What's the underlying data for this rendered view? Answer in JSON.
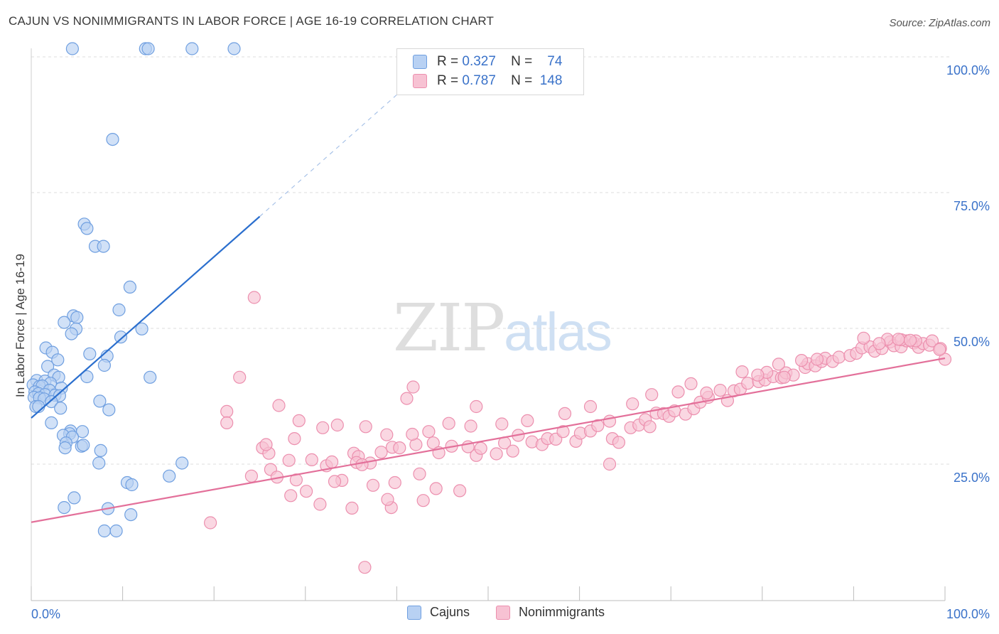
{
  "title": "CAJUN VS NONIMMIGRANTS IN LABOR FORCE | AGE 16-19 CORRELATION CHART",
  "source": "Source: ZipAtlas.com",
  "watermark": {
    "zip": "ZIP",
    "atlas": "atlas"
  },
  "legend": {
    "rows": [
      {
        "r_label": "R =",
        "r_value": "0.327",
        "n_label": "N =",
        "n_value": "74"
      },
      {
        "r_label": "R =",
        "r_value": "0.787",
        "n_label": "N =",
        "n_value": "148"
      }
    ]
  },
  "bottom_legend": {
    "cajuns": "Cajuns",
    "nonimmigrants": "Nonimmigrants"
  },
  "colors": {
    "cajun_fill": "#b8d1f3",
    "cajun_stroke": "#6f9fe0",
    "cajun_line": "#2b6fce",
    "nonimm_fill": "#f7c2d3",
    "nonimm_stroke": "#ec8fae",
    "nonimm_line": "#e3709a",
    "axis_text": "#3a72c9",
    "grid": "#dcdcdc"
  },
  "chart_data": {
    "type": "scatter",
    "title": "CAJUN VS NONIMMIGRANTS IN LABOR FORCE | AGE 16-19 CORRELATION CHART",
    "xlabel": "",
    "ylabel": "In Labor Force | Age 16-19",
    "xlim": [
      0,
      100
    ],
    "ylim": [
      0,
      105
    ],
    "x_tick_labels": [
      "0.0%",
      "100.0%"
    ],
    "y_ticks": [
      25,
      50,
      75,
      100
    ],
    "y_tick_labels": [
      "25.0%",
      "50.0%",
      "75.0%",
      "100.0%"
    ],
    "grid": true,
    "legend_position": "top-center",
    "series": [
      {
        "name": "Cajuns",
        "R": 0.327,
        "N": 74,
        "trend": {
          "x0": 0,
          "y0": 33.5,
          "x1": 25,
          "y1": 70.6,
          "dashed_to_x": 42,
          "dashed_to_y": 96
        },
        "points": [
          [
            4.5,
            101.5
          ],
          [
            12.5,
            101.5
          ],
          [
            12.8,
            101.5
          ],
          [
            17.6,
            101.5
          ],
          [
            22.2,
            101.5
          ],
          [
            8.9,
            84.8
          ],
          [
            5.8,
            69.2
          ],
          [
            6.1,
            68.4
          ],
          [
            7.0,
            65.1
          ],
          [
            7.9,
            65.1
          ],
          [
            10.8,
            57.6
          ],
          [
            9.6,
            53.4
          ],
          [
            4.6,
            52.3
          ],
          [
            5.0,
            52.0
          ],
          [
            3.6,
            51.1
          ],
          [
            4.9,
            49.9
          ],
          [
            4.4,
            49.0
          ],
          [
            12.1,
            49.9
          ],
          [
            9.8,
            48.4
          ],
          [
            1.6,
            46.4
          ],
          [
            2.3,
            45.6
          ],
          [
            6.4,
            45.3
          ],
          [
            8.3,
            44.9
          ],
          [
            8.0,
            43.2
          ],
          [
            2.9,
            44.2
          ],
          [
            1.8,
            43.0
          ],
          [
            6.1,
            41.1
          ],
          [
            13.0,
            41.0
          ],
          [
            2.5,
            41.4
          ],
          [
            3.0,
            41.0
          ],
          [
            0.6,
            40.4
          ],
          [
            1.5,
            40.3
          ],
          [
            2.1,
            39.9
          ],
          [
            0.2,
            39.6
          ],
          [
            0.9,
            39.3
          ],
          [
            1.2,
            39.4
          ],
          [
            2.0,
            38.6
          ],
          [
            3.3,
            39.0
          ],
          [
            0.4,
            38.3
          ],
          [
            0.8,
            38.0
          ],
          [
            1.5,
            37.8
          ],
          [
            2.6,
            37.7
          ],
          [
            3.1,
            37.6
          ],
          [
            0.3,
            37.3
          ],
          [
            0.9,
            37.2
          ],
          [
            1.4,
            37.0
          ],
          [
            2.2,
            36.5
          ],
          [
            0.5,
            35.6
          ],
          [
            0.8,
            35.6
          ],
          [
            3.2,
            35.3
          ],
          [
            7.5,
            36.6
          ],
          [
            8.5,
            35.0
          ],
          [
            2.2,
            32.6
          ],
          [
            4.3,
            31.1
          ],
          [
            5.6,
            31.0
          ],
          [
            4.2,
            30.6
          ],
          [
            3.5,
            30.3
          ],
          [
            4.5,
            30.0
          ],
          [
            3.8,
            28.9
          ],
          [
            5.5,
            28.3
          ],
          [
            5.7,
            28.5
          ],
          [
            3.7,
            28.0
          ],
          [
            7.6,
            27.5
          ],
          [
            7.4,
            25.2
          ],
          [
            16.5,
            25.2
          ],
          [
            10.5,
            21.6
          ],
          [
            11.0,
            21.2
          ],
          [
            15.1,
            22.8
          ],
          [
            4.7,
            18.8
          ],
          [
            3.6,
            17.0
          ],
          [
            8.4,
            16.8
          ],
          [
            10.9,
            15.7
          ],
          [
            8.0,
            12.7
          ],
          [
            9.3,
            12.7
          ]
        ]
      },
      {
        "name": "Nonimmigrants",
        "R": 0.787,
        "N": 148,
        "trend": {
          "x0": 0,
          "y0": 14.3,
          "x1": 100,
          "y1": 44.5
        },
        "points": [
          [
            24.4,
            55.7
          ],
          [
            22.8,
            41.0
          ],
          [
            21.4,
            34.7
          ],
          [
            27.1,
            35.8
          ],
          [
            29.3,
            33.0
          ],
          [
            41.1,
            37.1
          ],
          [
            41.8,
            39.2
          ],
          [
            25.3,
            28.0
          ],
          [
            26.0,
            27.0
          ],
          [
            26.2,
            24.0
          ],
          [
            24.1,
            22.8
          ],
          [
            26.9,
            22.6
          ],
          [
            28.2,
            25.7
          ],
          [
            30.7,
            25.8
          ],
          [
            32.3,
            24.7
          ],
          [
            32.9,
            25.4
          ],
          [
            35.3,
            27.0
          ],
          [
            35.8,
            26.4
          ],
          [
            35.6,
            25.3
          ],
          [
            37.1,
            25.2
          ],
          [
            36.2,
            24.9
          ],
          [
            38.3,
            27.2
          ],
          [
            39.5,
            28.1
          ],
          [
            40.3,
            28.0
          ],
          [
            42.1,
            28.6
          ],
          [
            44.0,
            28.9
          ],
          [
            44.6,
            27.1
          ],
          [
            46.0,
            28.3
          ],
          [
            47.8,
            28.2
          ],
          [
            48.7,
            26.6
          ],
          [
            49.2,
            27.9
          ],
          [
            50.9,
            26.9
          ],
          [
            51.8,
            28.9
          ],
          [
            52.7,
            27.4
          ],
          [
            53.3,
            30.3
          ],
          [
            54.8,
            29.1
          ],
          [
            55.9,
            28.6
          ],
          [
            56.5,
            29.7
          ],
          [
            57.4,
            29.6
          ],
          [
            58.2,
            31.0
          ],
          [
            59.6,
            29.2
          ],
          [
            60.1,
            30.7
          ],
          [
            61.2,
            31.1
          ],
          [
            62.0,
            32.1
          ],
          [
            63.3,
            32.9
          ],
          [
            63.6,
            29.7
          ],
          [
            64.3,
            29.0
          ],
          [
            65.6,
            31.7
          ],
          [
            66.5,
            32.2
          ],
          [
            67.2,
            33.2
          ],
          [
            67.7,
            31.9
          ],
          [
            68.4,
            34.4
          ],
          [
            69.2,
            34.3
          ],
          [
            69.8,
            33.8
          ],
          [
            70.4,
            34.8
          ],
          [
            71.6,
            34.2
          ],
          [
            72.5,
            35.2
          ],
          [
            73.2,
            36.4
          ],
          [
            74.1,
            37.3
          ],
          [
            75.4,
            38.6
          ],
          [
            76.2,
            36.7
          ],
          [
            76.9,
            38.5
          ],
          [
            77.6,
            38.8
          ],
          [
            78.4,
            39.9
          ],
          [
            79.6,
            40.2
          ],
          [
            80.3,
            40.5
          ],
          [
            81.2,
            41.1
          ],
          [
            82.1,
            40.9
          ],
          [
            82.6,
            41.8
          ],
          [
            83.4,
            41.4
          ],
          [
            84.7,
            42.8
          ],
          [
            85.0,
            43.5
          ],
          [
            85.8,
            43.1
          ],
          [
            86.5,
            43.9
          ],
          [
            86.9,
            44.5
          ],
          [
            87.7,
            43.9
          ],
          [
            88.4,
            44.7
          ],
          [
            89.6,
            45.0
          ],
          [
            90.3,
            45.4
          ],
          [
            90.9,
            46.4
          ],
          [
            91.8,
            46.6
          ],
          [
            92.3,
            45.8
          ],
          [
            93.1,
            46.3
          ],
          [
            94.0,
            47.5
          ],
          [
            94.4,
            46.8
          ],
          [
            95.2,
            46.6
          ],
          [
            95.8,
            47.7
          ],
          [
            96.6,
            47.3
          ],
          [
            97.1,
            46.5
          ],
          [
            97.6,
            47.2
          ],
          [
            98.3,
            46.9
          ],
          [
            98.6,
            47.7
          ],
          [
            99.5,
            46.3
          ],
          [
            100.0,
            44.3
          ],
          [
            99.4,
            46.1
          ],
          [
            91.1,
            48.2
          ],
          [
            93.7,
            48.0
          ],
          [
            95.2,
            47.9
          ],
          [
            96.8,
            47.7
          ],
          [
            96.2,
            47.8
          ],
          [
            94.9,
            48.0
          ],
          [
            92.8,
            47.2
          ],
          [
            86.0,
            44.3
          ],
          [
            84.3,
            44.1
          ],
          [
            82.4,
            41.0
          ],
          [
            81.8,
            43.4
          ],
          [
            80.5,
            41.9
          ],
          [
            79.5,
            41.4
          ],
          [
            77.8,
            42.0
          ],
          [
            73.9,
            38.1
          ],
          [
            72.2,
            39.8
          ],
          [
            70.8,
            38.3
          ],
          [
            67.9,
            37.8
          ],
          [
            65.8,
            36.1
          ],
          [
            61.2,
            35.6
          ],
          [
            58.4,
            34.3
          ],
          [
            54.3,
            33.0
          ],
          [
            51.5,
            32.4
          ],
          [
            48.1,
            32.0
          ],
          [
            45.7,
            32.5
          ],
          [
            43.5,
            31.0
          ],
          [
            41.7,
            30.5
          ],
          [
            38.9,
            30.4
          ],
          [
            36.6,
            31.9
          ],
          [
            33.5,
            32.2
          ],
          [
            31.9,
            31.7
          ],
          [
            28.8,
            29.7
          ],
          [
            25.7,
            28.6
          ],
          [
            34.0,
            22.0
          ],
          [
            30.1,
            20.0
          ],
          [
            28.4,
            19.2
          ],
          [
            31.6,
            17.6
          ],
          [
            35.1,
            16.9
          ],
          [
            39.4,
            17.0
          ],
          [
            44.3,
            20.5
          ],
          [
            46.9,
            20.1
          ],
          [
            42.5,
            23.2
          ],
          [
            39.8,
            21.6
          ],
          [
            37.4,
            21.1
          ],
          [
            33.2,
            21.8
          ],
          [
            29.0,
            22.1
          ],
          [
            21.4,
            32.6
          ],
          [
            19.6,
            14.2
          ],
          [
            36.5,
            6.0
          ],
          [
            39.0,
            18.5
          ],
          [
            42.9,
            18.3
          ],
          [
            48.7,
            35.6
          ],
          [
            63.3,
            25.0
          ]
        ]
      }
    ]
  }
}
